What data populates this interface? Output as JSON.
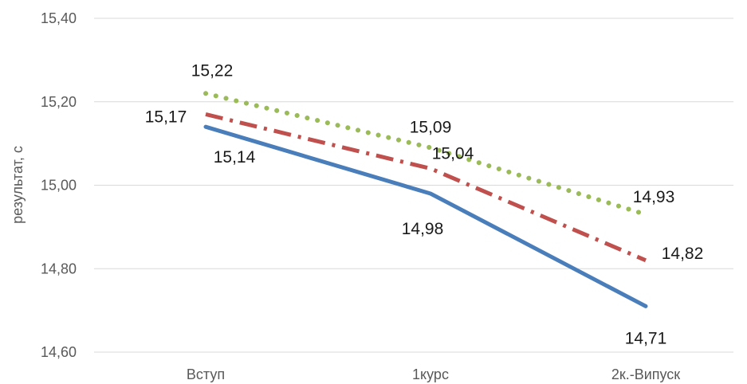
{
  "chart_data": {
    "type": "line",
    "title": "",
    "xlabel": "",
    "ylabel": "результат, с",
    "categories": [
      "Вступ",
      "1курс",
      "2к.-Випуск"
    ],
    "ylim": [
      14.6,
      15.4
    ],
    "yticks": [
      14.6,
      14.8,
      15.0,
      15.2,
      15.4
    ],
    "ytick_labels": [
      "14,60",
      "14,80",
      "15,00",
      "15,20",
      "15,40"
    ],
    "grid": true,
    "legend": "none",
    "series": [
      {
        "values": [
          15.14,
          14.98,
          14.71
        ],
        "labels": [
          "15,14",
          "14,98",
          "14,71"
        ],
        "color": "#4a7ebb",
        "style": "solid"
      },
      {
        "values": [
          15.17,
          15.04,
          14.82
        ],
        "labels": [
          "15,17",
          "15,04",
          "14,82"
        ],
        "color": "#c0504d",
        "style": "dash-dot"
      },
      {
        "values": [
          15.22,
          15.09,
          14.93
        ],
        "labels": [
          "15,22",
          "15,09",
          "14,93"
        ],
        "color": "#9bbb59",
        "style": "dotted"
      }
    ]
  }
}
